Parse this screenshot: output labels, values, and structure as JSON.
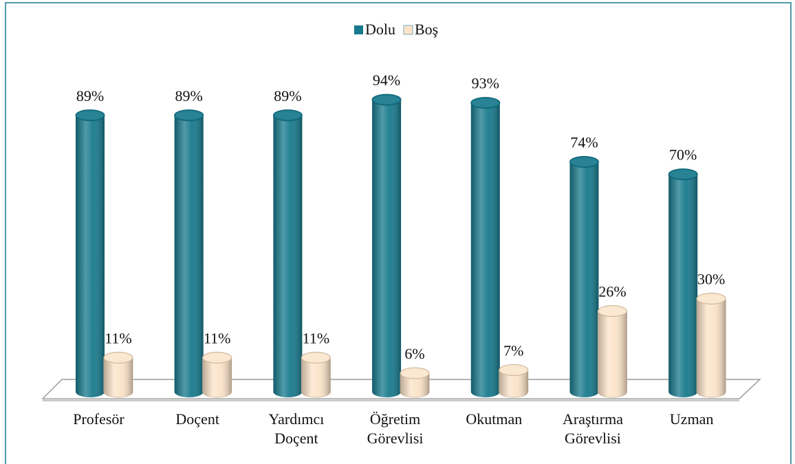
{
  "chart_data": {
    "type": "cylinder-bar",
    "categories": [
      "Profesör",
      "Doçent",
      "Yardımcı Doçent",
      "Öğretim Görevlisi",
      "Okutman",
      "Araştırma Görevlisi",
      "Uzman"
    ],
    "series": [
      {
        "name": "Dolu",
        "color": "#17798c",
        "values": [
          89,
          89,
          89,
          94,
          93,
          74,
          70
        ],
        "value_labels": [
          "89%",
          "89%",
          "89%",
          "94%",
          "93%",
          "74%",
          "70%"
        ]
      },
      {
        "name": "Boş",
        "color": "#fbe3c8",
        "values": [
          11,
          11,
          11,
          6,
          7,
          26,
          30
        ],
        "value_labels": [
          "11%",
          "11%",
          "11%",
          "6%",
          "7%",
          "26%",
          "30%"
        ]
      }
    ],
    "legend": "top"
  }
}
